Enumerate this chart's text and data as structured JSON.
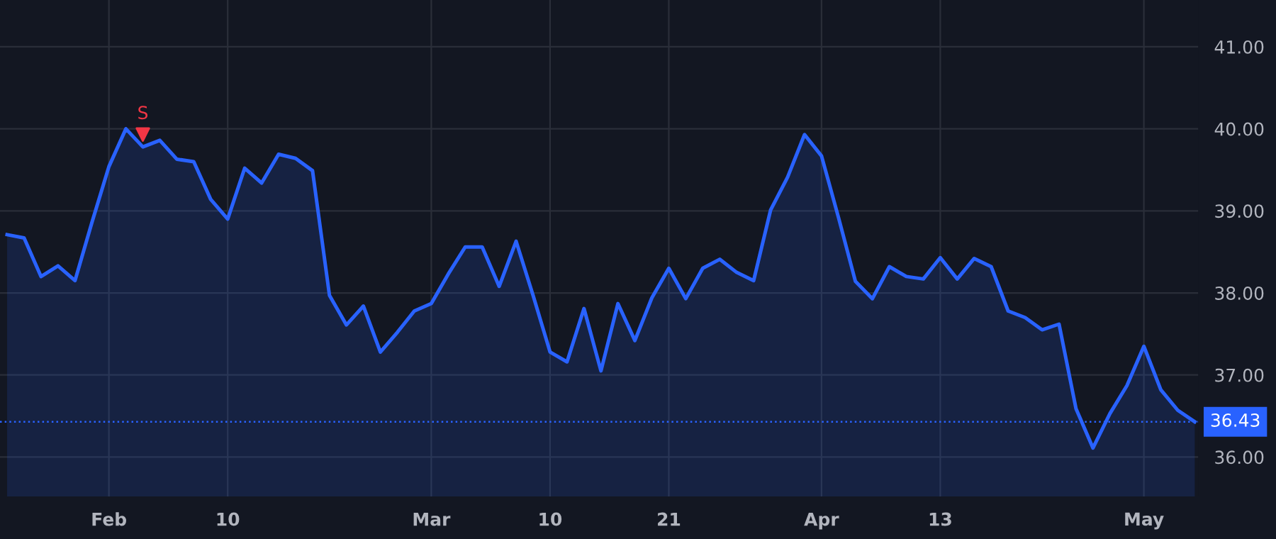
{
  "chart_data": {
    "type": "area",
    "categories": [
      null,
      null,
      null,
      null,
      null,
      null,
      "Feb",
      null,
      null,
      null,
      null,
      null,
      null,
      "10",
      null,
      null,
      null,
      null,
      null,
      null,
      null,
      null,
      null,
      null,
      null,
      "Mar",
      null,
      null,
      null,
      null,
      null,
      null,
      "10",
      null,
      null,
      null,
      null,
      null,
      null,
      "21",
      null,
      null,
      null,
      null,
      null,
      null,
      null,
      null,
      "Apr",
      null,
      null,
      null,
      null,
      null,
      null,
      "13",
      null,
      null,
      null,
      null,
      null,
      null,
      null,
      null,
      null,
      null,
      null,
      "May",
      null,
      null,
      null
    ],
    "series": [
      {
        "color": "#2962ff",
        "values": [
          38.71,
          38.67,
          38.2,
          38.33,
          38.15,
          38.86,
          39.54,
          40.0,
          39.78,
          39.86,
          39.63,
          39.6,
          39.14,
          38.9,
          39.52,
          39.34,
          39.69,
          39.64,
          39.49,
          37.97,
          37.61,
          37.84,
          37.28,
          37.52,
          37.78,
          37.87,
          38.23,
          38.56,
          38.56,
          38.08,
          38.63,
          37.97,
          37.28,
          37.16,
          37.81,
          37.05,
          37.87,
          37.42,
          37.94,
          38.3,
          37.93,
          38.3,
          38.41,
          38.25,
          38.15,
          39.01,
          39.41,
          39.93,
          39.67,
          38.92,
          38.14,
          37.93,
          38.32,
          38.2,
          38.17,
          38.43,
          38.17,
          38.42,
          38.32,
          37.78,
          37.7,
          37.55,
          37.62,
          36.59,
          36.11,
          36.53,
          36.87,
          37.35,
          36.82,
          36.57,
          36.43
        ]
      },
      {
        "type": "scatter",
        "name": "S",
        "color": "#f23645",
        "marker": "triangle",
        "values": [
          null,
          null,
          null,
          null,
          null,
          null,
          null,
          null,
          39.93,
          null,
          null,
          null,
          null,
          null,
          null,
          null,
          null,
          null,
          null,
          null,
          null,
          null,
          null,
          null,
          null,
          null,
          null,
          null,
          null,
          null,
          null,
          null,
          null,
          null,
          null,
          null,
          null,
          null,
          null,
          null,
          null,
          null,
          null,
          null,
          null,
          null,
          null,
          null,
          null,
          null,
          null,
          null,
          null,
          null,
          null,
          null,
          null,
          null,
          null,
          null,
          null,
          null,
          null,
          null,
          null,
          null,
          null,
          null,
          null,
          null,
          null
        ]
      }
    ],
    "ylim": [
      35.52,
      41.57
    ],
    "yticks": [
      {
        "value": 36,
        "label": "36.00"
      },
      {
        "value": 37,
        "label": "37.00"
      },
      {
        "value": 38,
        "label": "38.00"
      },
      {
        "value": 39,
        "label": "39.00"
      },
      {
        "value": 40,
        "label": "40.00"
      },
      {
        "value": 41,
        "label": "41.00"
      }
    ],
    "ref_lines": [
      {
        "axis": "y",
        "value": 36.43,
        "label": "36.43",
        "color": "#2962ff",
        "line_style": "dotted"
      }
    ],
    "grid": true
  }
}
